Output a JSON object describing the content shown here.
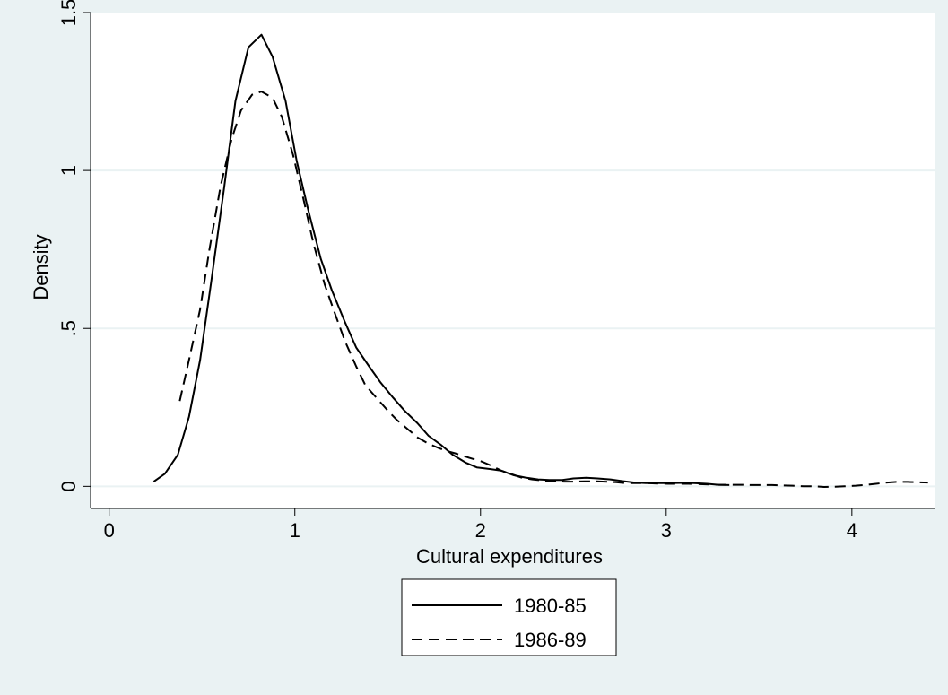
{
  "chart_data": {
    "type": "line",
    "title": "",
    "xlabel": "Cultural expenditures",
    "ylabel": "Density",
    "xlim": [
      -0.1,
      4.45
    ],
    "ylim": [
      -0.07,
      1.5
    ],
    "x_ticks": [
      0,
      1,
      2,
      3,
      4
    ],
    "x_tick_labels": [
      "0",
      "1",
      "2",
      "3",
      "4"
    ],
    "y_ticks": [
      0,
      0.5,
      1,
      1.5
    ],
    "y_tick_labels": [
      "0",
      ".5",
      "1",
      "1.5"
    ],
    "grid": "horizontal",
    "legend_position": "bottom",
    "colors": {
      "background": "#eaf2f3",
      "plot_area": "#ffffff",
      "grid": "#eaf2f3",
      "line": "#000000"
    },
    "series": [
      {
        "name": "1980-85",
        "style": "solid",
        "points": [
          [
            0.24,
            0.015
          ],
          [
            0.3,
            0.04
          ],
          [
            0.37,
            0.1
          ],
          [
            0.43,
            0.22
          ],
          [
            0.49,
            0.4
          ],
          [
            0.55,
            0.65
          ],
          [
            0.62,
            0.95
          ],
          [
            0.68,
            1.22
          ],
          [
            0.75,
            1.39
          ],
          [
            0.82,
            1.43
          ],
          [
            0.88,
            1.36
          ],
          [
            0.95,
            1.22
          ],
          [
            1.01,
            1.03
          ],
          [
            1.07,
            0.88
          ],
          [
            1.14,
            0.72
          ],
          [
            1.2,
            0.62
          ],
          [
            1.27,
            0.52
          ],
          [
            1.33,
            0.44
          ],
          [
            1.4,
            0.38
          ],
          [
            1.46,
            0.33
          ],
          [
            1.53,
            0.28
          ],
          [
            1.59,
            0.24
          ],
          [
            1.66,
            0.2
          ],
          [
            1.72,
            0.16
          ],
          [
            1.79,
            0.13
          ],
          [
            1.85,
            0.1
          ],
          [
            1.92,
            0.075
          ],
          [
            1.98,
            0.06
          ],
          [
            2.05,
            0.055
          ],
          [
            2.11,
            0.05
          ],
          [
            2.18,
            0.035
          ],
          [
            2.24,
            0.028
          ],
          [
            2.31,
            0.022
          ],
          [
            2.37,
            0.02
          ],
          [
            2.44,
            0.02
          ],
          [
            2.5,
            0.025
          ],
          [
            2.57,
            0.027
          ],
          [
            2.63,
            0.025
          ],
          [
            2.7,
            0.022
          ],
          [
            2.76,
            0.017
          ],
          [
            2.83,
            0.012
          ],
          [
            2.89,
            0.01
          ],
          [
            2.96,
            0.01
          ],
          [
            3.02,
            0.01
          ],
          [
            3.09,
            0.011
          ],
          [
            3.15,
            0.01
          ],
          [
            3.22,
            0.008
          ],
          [
            3.28,
            0.005
          ],
          [
            3.34,
            0.004
          ]
        ]
      },
      {
        "name": "1986-89",
        "style": "dashed",
        "points": [
          [
            0.38,
            0.27
          ],
          [
            0.43,
            0.4
          ],
          [
            0.49,
            0.56
          ],
          [
            0.54,
            0.75
          ],
          [
            0.6,
            0.95
          ],
          [
            0.66,
            1.1
          ],
          [
            0.71,
            1.19
          ],
          [
            0.77,
            1.24
          ],
          [
            0.82,
            1.25
          ],
          [
            0.88,
            1.23
          ],
          [
            0.93,
            1.17
          ],
          [
            0.99,
            1.05
          ],
          [
            1.05,
            0.9
          ],
          [
            1.1,
            0.77
          ],
          [
            1.16,
            0.64
          ],
          [
            1.22,
            0.54
          ],
          [
            1.27,
            0.46
          ],
          [
            1.33,
            0.38
          ],
          [
            1.38,
            0.32
          ],
          [
            1.44,
            0.28
          ],
          [
            1.5,
            0.24
          ],
          [
            1.55,
            0.21
          ],
          [
            1.61,
            0.18
          ],
          [
            1.66,
            0.155
          ],
          [
            1.72,
            0.135
          ],
          [
            1.78,
            0.12
          ],
          [
            1.83,
            0.11
          ],
          [
            1.89,
            0.1
          ],
          [
            1.94,
            0.09
          ],
          [
            2.0,
            0.08
          ],
          [
            2.06,
            0.065
          ],
          [
            2.11,
            0.05
          ],
          [
            2.17,
            0.038
          ],
          [
            2.22,
            0.028
          ],
          [
            2.28,
            0.022
          ],
          [
            2.34,
            0.018
          ],
          [
            2.39,
            0.016
          ],
          [
            2.45,
            0.015
          ],
          [
            2.5,
            0.015
          ],
          [
            2.56,
            0.016
          ],
          [
            2.62,
            0.016
          ],
          [
            2.67,
            0.015
          ],
          [
            2.73,
            0.013
          ],
          [
            2.78,
            0.01
          ],
          [
            2.84,
            0.01
          ],
          [
            2.9,
            0.01
          ],
          [
            2.95,
            0.009
          ],
          [
            3.01,
            0.008
          ],
          [
            3.07,
            0.008
          ],
          [
            3.12,
            0.008
          ],
          [
            3.18,
            0.007
          ],
          [
            3.23,
            0.006
          ],
          [
            3.29,
            0.005
          ],
          [
            3.35,
            0.005
          ],
          [
            3.4,
            0.005
          ],
          [
            3.46,
            0.004
          ],
          [
            3.52,
            0.004
          ],
          [
            3.57,
            0.004
          ],
          [
            3.63,
            0.003
          ],
          [
            3.68,
            0.002
          ],
          [
            3.74,
            0.0
          ],
          [
            3.8,
            0.0
          ],
          [
            3.85,
            -0.002
          ],
          [
            3.91,
            -0.001
          ],
          [
            3.96,
            0.0
          ],
          [
            4.02,
            0.002
          ],
          [
            4.08,
            0.005
          ],
          [
            4.13,
            0.008
          ],
          [
            4.19,
            0.012
          ],
          [
            4.24,
            0.014
          ],
          [
            4.3,
            0.014
          ],
          [
            4.35,
            0.013
          ],
          [
            4.41,
            0.012
          ]
        ]
      }
    ]
  }
}
